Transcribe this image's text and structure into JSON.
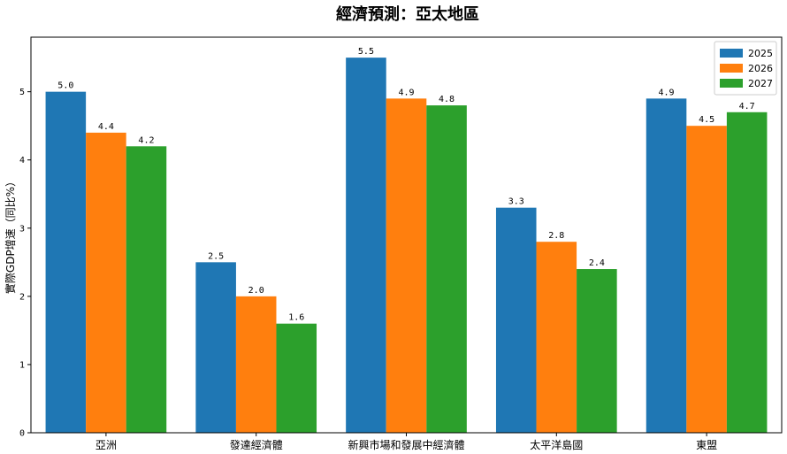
{
  "chart_data": {
    "type": "bar",
    "title": "經濟預測：亞太地區",
    "xlabel": "",
    "ylabel": "實際GDP增速（同比%）",
    "categories": [
      "亞洲",
      "發達經濟體",
      "新興市場和發展中經濟體",
      "太平洋島國",
      "東盟"
    ],
    "series": [
      {
        "name": "2025",
        "color": "#1f77b4",
        "values": [
          5.0,
          2.5,
          5.5,
          3.3,
          4.9
        ],
        "labels": [
          "5.0",
          "2.5",
          "5.5",
          "3.3",
          "4.9"
        ]
      },
      {
        "name": "2026",
        "color": "#ff7f0e",
        "values": [
          4.4,
          2.0,
          4.9,
          2.8,
          4.5
        ],
        "labels": [
          "4.4",
          "2.0",
          "4.9",
          "2.8",
          "4.5"
        ]
      },
      {
        "name": "2027",
        "color": "#2ca02c",
        "values": [
          4.2,
          1.6,
          4.8,
          2.4,
          4.7
        ],
        "labels": [
          "4.2",
          "1.6",
          "4.8",
          "2.4",
          "4.7"
        ]
      }
    ],
    "ylim": [
      0,
      5.8
    ],
    "yticks": [
      0,
      1,
      2,
      3,
      4,
      5
    ],
    "ytick_labels": [
      "0",
      "1",
      "2",
      "3",
      "4",
      "5"
    ],
    "grid": false,
    "legend": "top-right"
  }
}
